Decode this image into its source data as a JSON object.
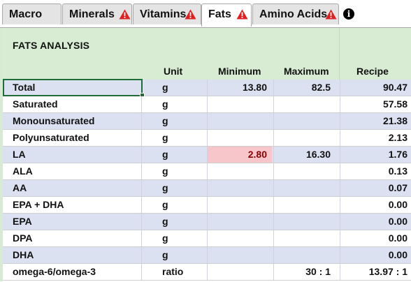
{
  "tabs": [
    {
      "label": "Macro",
      "warning": false,
      "active": false
    },
    {
      "label": "Minerals",
      "warning": true,
      "active": false
    },
    {
      "label": "Vitamins",
      "warning": true,
      "active": false
    },
    {
      "label": "Fats",
      "warning": true,
      "active": true
    },
    {
      "label": "Amino Acids",
      "warning": true,
      "active": false
    }
  ],
  "info_icon": "i",
  "panel": {
    "title": "FATS ANALYSIS",
    "columns": {
      "unit": "Unit",
      "minimum": "Minimum",
      "maximum": "Maximum",
      "recipe": "Recipe"
    }
  },
  "rows": [
    {
      "name": "Total",
      "unit": "g",
      "minimum": "13.80",
      "maximum": "82.5",
      "recipe": "90.47",
      "selected": true
    },
    {
      "name": "Saturated",
      "unit": "g",
      "minimum": "",
      "maximum": "",
      "recipe": "57.58"
    },
    {
      "name": "Monounsaturated",
      "unit": "g",
      "minimum": "",
      "maximum": "",
      "recipe": "21.38"
    },
    {
      "name": "Polyunsaturated",
      "unit": "g",
      "minimum": "",
      "maximum": "",
      "recipe": "2.13"
    },
    {
      "name": "LA",
      "unit": "g",
      "minimum": "2.80",
      "maximum": "16.30",
      "recipe": "1.76",
      "min_warning": true
    },
    {
      "name": "ALA",
      "unit": "g",
      "minimum": "",
      "maximum": "",
      "recipe": "0.13"
    },
    {
      "name": "AA",
      "unit": "g",
      "minimum": "",
      "maximum": "",
      "recipe": "0.07"
    },
    {
      "name": "EPA + DHA",
      "unit": "g",
      "minimum": "",
      "maximum": "",
      "recipe": "0.00"
    },
    {
      "name": "EPA",
      "unit": "g",
      "minimum": "",
      "maximum": "",
      "recipe": "0.00"
    },
    {
      "name": "DPA",
      "unit": "g",
      "minimum": "",
      "maximum": "",
      "recipe": "0.00"
    },
    {
      "name": "DHA",
      "unit": "g",
      "minimum": "",
      "maximum": "",
      "recipe": "0.00"
    },
    {
      "name": "omega-6/omega-3",
      "unit": "ratio",
      "minimum": "",
      "maximum": "30 : 1",
      "recipe": "13.97 : 1"
    }
  ],
  "colors": {
    "warning_icon": "#e02020",
    "warning_cell_bg": "#f6c6cb",
    "warning_cell_text": "#8a0000",
    "band_row": "#dce1f1",
    "header_green": "#d8ebd3",
    "selection_border": "#1f6e3a"
  }
}
